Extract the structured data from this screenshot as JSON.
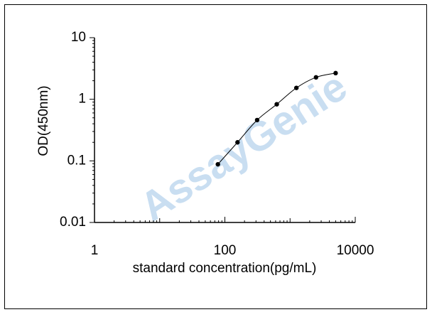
{
  "chart_data": {
    "type": "line",
    "x_label": "standard concentration(pg/mL)",
    "y_label": "OD(450nm)",
    "watermark": "AssayGenie",
    "x": [
      78.125,
      156.25,
      312.5,
      625,
      1250,
      2500,
      5000
    ],
    "series": [
      {
        "color": "#000000",
        "values": [
          0.088,
          0.2,
          0.46,
          0.83,
          1.53,
          2.27,
          2.66
        ]
      }
    ],
    "xscale": "log",
    "yscale": "log",
    "xlim": [
      1,
      10000
    ],
    "ylim": [
      0.01,
      10
    ],
    "xticks": [
      1,
      100,
      10000
    ],
    "yticks": [
      0.01,
      0.1,
      1,
      10
    ]
  }
}
